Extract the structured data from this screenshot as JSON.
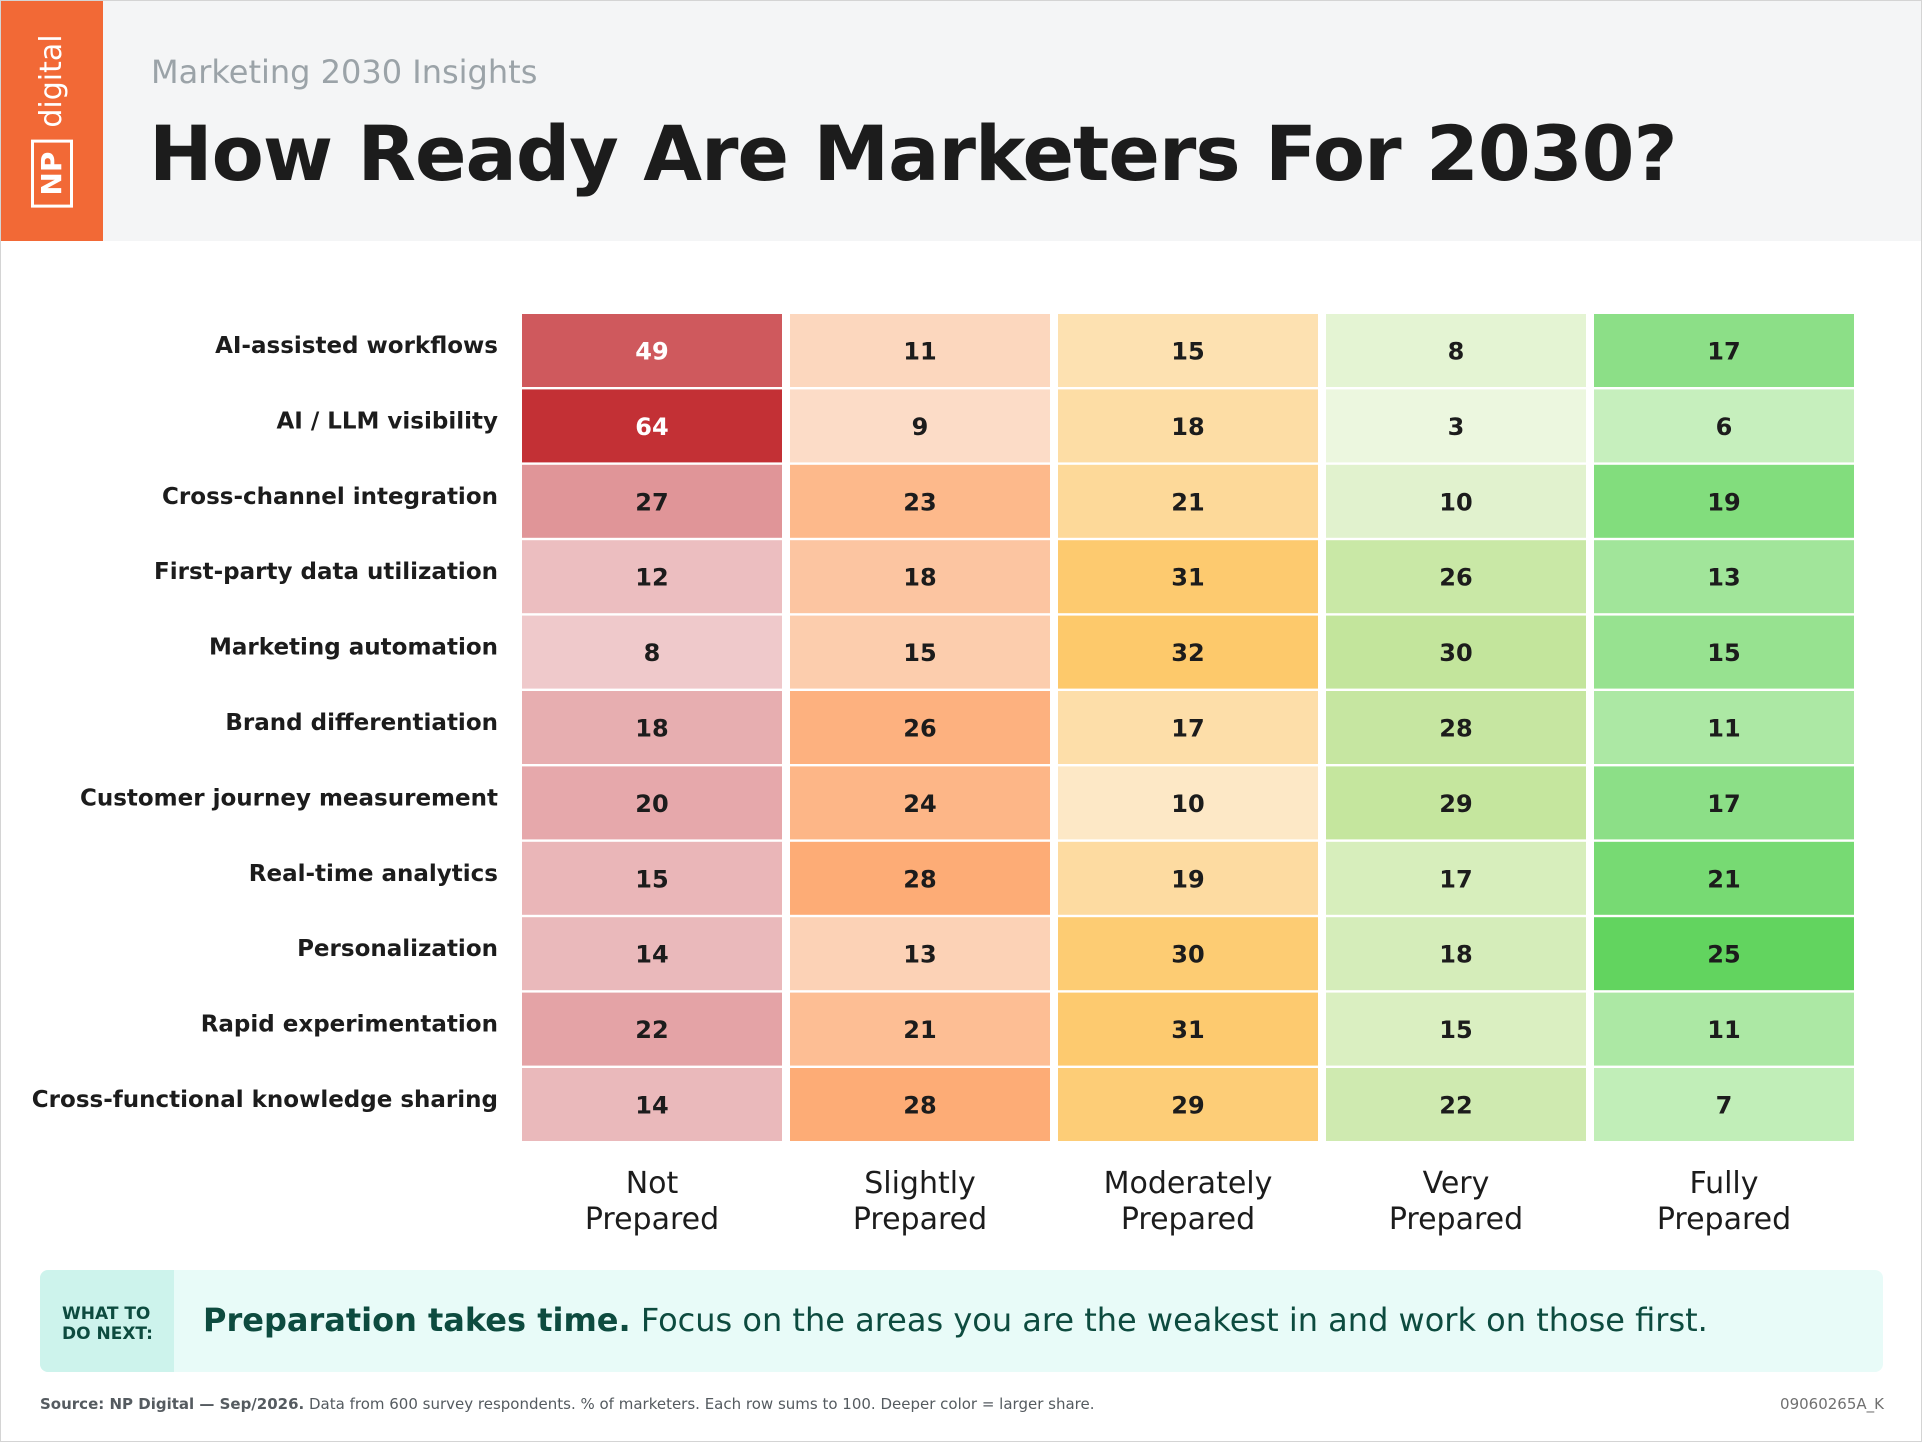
{
  "header": {
    "logo": {
      "brand": "NP",
      "word": "digital"
    },
    "subtitle": "Marketing 2030 Insights",
    "title": "How Ready Are Marketers For 2030?"
  },
  "chart_data": {
    "type": "heatmap",
    "title": "How Ready Are Marketers For 2030?",
    "rows": [
      "AI-assisted workflows",
      "AI / LLM visibility",
      "Cross-channel integration",
      "First-party data utilization",
      "Marketing automation",
      "Brand differentiation",
      "Customer journey measurement",
      "Real-time analytics",
      "Personalization",
      "Rapid experimentation",
      "Cross-functional knowledge sharing"
    ],
    "columns": [
      [
        "Not",
        "Prepared"
      ],
      [
        "Slightly",
        "Prepared"
      ],
      [
        "Moderately",
        "Prepared"
      ],
      [
        "Very",
        "Prepared"
      ],
      [
        "Fully",
        "Prepared"
      ]
    ],
    "values": [
      [
        49,
        11,
        15,
        8,
        17
      ],
      [
        64,
        9,
        18,
        3,
        6
      ],
      [
        27,
        23,
        21,
        10,
        19
      ],
      [
        12,
        18,
        31,
        26,
        13
      ],
      [
        8,
        15,
        32,
        30,
        15
      ],
      [
        18,
        26,
        17,
        28,
        11
      ],
      [
        20,
        24,
        10,
        29,
        17
      ],
      [
        15,
        28,
        19,
        17,
        21
      ],
      [
        14,
        13,
        30,
        18,
        25
      ],
      [
        22,
        21,
        31,
        15,
        11
      ],
      [
        14,
        28,
        29,
        22,
        7
      ]
    ],
    "column_colors": {
      "light": [
        "#efc9cb",
        "#fcdcc7",
        "#fde8c6",
        "#ecf7df",
        "#c6efbd"
      ],
      "dark": [
        "#c33035",
        "#fdac76",
        "#fdc96b",
        "#c3e59c",
        "#62d45f"
      ]
    }
  },
  "callout": {
    "tag_line1": "WHAT TO",
    "tag_line2": "DO NEXT:",
    "strong": "Preparation takes time.",
    "text": " Focus on the areas you are the weakest in and work on those first."
  },
  "footer": {
    "source": "Source: NP Digital — Sep/2026.",
    "note": " Data from 600 survey respondents. % of marketers. Each row sums to 100. Deeper color = larger share.",
    "code": "09060265A_K"
  }
}
